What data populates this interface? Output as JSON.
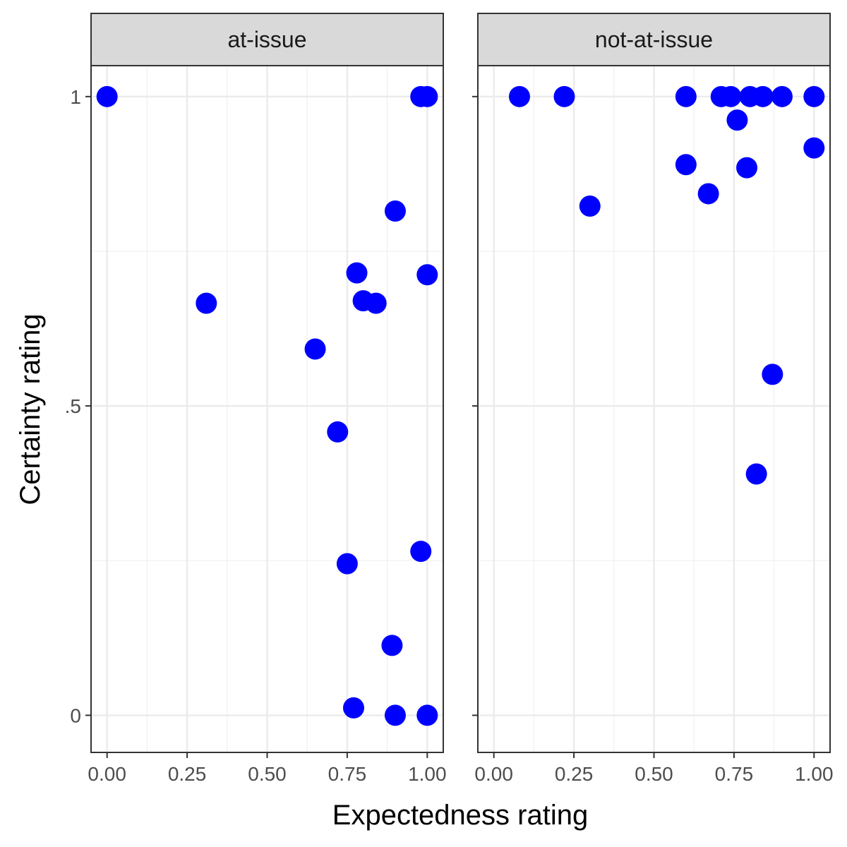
{
  "chart_data": {
    "type": "scatter",
    "xlabel": "Expectedness rating",
    "ylabel": "Certainty rating",
    "xlim": [
      -0.05,
      1.05
    ],
    "ylim": [
      -0.06,
      1.05
    ],
    "x_ticks": [
      {
        "value": 0,
        "label": "0.00"
      },
      {
        "value": 0.25,
        "label": "0.25"
      },
      {
        "value": 0.5,
        "label": "0.50"
      },
      {
        "value": 0.75,
        "label": "0.75"
      },
      {
        "value": 1,
        "label": "1.00"
      }
    ],
    "y_ticks": [
      {
        "value": 0,
        "label": "0"
      },
      {
        "value": 0.5,
        "label": ".5"
      },
      {
        "value": 1,
        "label": "1"
      }
    ],
    "grid": true,
    "point_color": "#0000FF",
    "panels": [
      {
        "label": "at-issue",
        "points": [
          {
            "x": 0.0,
            "y": 1.0
          },
          {
            "x": 0.98,
            "y": 1.0
          },
          {
            "x": 1.0,
            "y": 1.0
          },
          {
            "x": 0.9,
            "y": 0.815
          },
          {
            "x": 0.78,
            "y": 0.715
          },
          {
            "x": 1.0,
            "y": 0.712
          },
          {
            "x": 0.31,
            "y": 0.666
          },
          {
            "x": 0.8,
            "y": 0.67
          },
          {
            "x": 0.84,
            "y": 0.666
          },
          {
            "x": 0.65,
            "y": 0.592
          },
          {
            "x": 0.72,
            "y": 0.458
          },
          {
            "x": 0.98,
            "y": 0.265
          },
          {
            "x": 0.75,
            "y": 0.245
          },
          {
            "x": 0.89,
            "y": 0.113
          },
          {
            "x": 0.77,
            "y": 0.012
          },
          {
            "x": 0.9,
            "y": 0.0
          },
          {
            "x": 1.0,
            "y": 0.0
          }
        ]
      },
      {
        "label": "not-at-issue",
        "points": [
          {
            "x": 0.08,
            "y": 1.0
          },
          {
            "x": 0.22,
            "y": 1.0
          },
          {
            "x": 0.6,
            "y": 1.0
          },
          {
            "x": 0.71,
            "y": 1.0
          },
          {
            "x": 0.74,
            "y": 1.0
          },
          {
            "x": 0.8,
            "y": 1.0
          },
          {
            "x": 0.84,
            "y": 1.0
          },
          {
            "x": 0.9,
            "y": 1.0
          },
          {
            "x": 1.0,
            "y": 1.0
          },
          {
            "x": 0.76,
            "y": 0.962
          },
          {
            "x": 1.0,
            "y": 0.917
          },
          {
            "x": 0.6,
            "y": 0.89
          },
          {
            "x": 0.79,
            "y": 0.885
          },
          {
            "x": 0.67,
            "y": 0.843
          },
          {
            "x": 0.3,
            "y": 0.823
          },
          {
            "x": 0.87,
            "y": 0.551
          },
          {
            "x": 0.82,
            "y": 0.39
          }
        ]
      }
    ]
  }
}
